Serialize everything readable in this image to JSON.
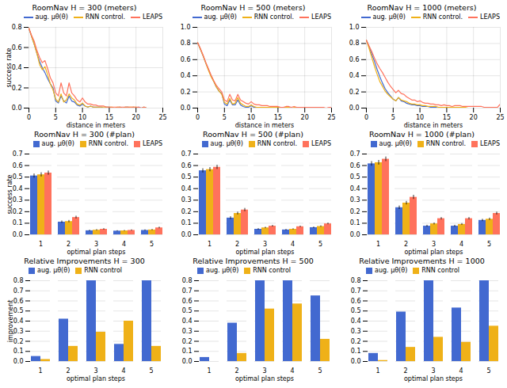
{
  "chart_data": [
    {
      "type": "line",
      "title": "RoomNav H = 300 (meters)",
      "xlabel": "distance in meters",
      "ylabel": "success rate",
      "x": [
        0,
        0.5,
        1,
        1.5,
        2,
        2.5,
        3,
        3.5,
        4,
        4.5,
        5,
        5.5,
        6,
        6.5,
        7,
        7.5,
        8,
        8.5,
        9,
        9.5,
        10,
        10.5,
        11,
        11.5,
        12,
        12.5,
        13,
        13.5,
        14,
        14.5,
        15,
        15.5,
        16,
        16.5,
        17,
        17.5,
        18,
        18.5,
        19,
        19.5,
        20,
        20.5,
        21,
        21.5,
        22,
        22.5,
        23,
        23.5,
        24,
        24.5,
        25
      ],
      "series": [
        {
          "name": "aug. μθ(θ)",
          "values": [
            0.79,
            0.71,
            0.63,
            0.54,
            0.46,
            0.4,
            0.35,
            0.29,
            0.24,
            0.2,
            0.07,
            0.05,
            0.12,
            0.07,
            0.05,
            0.12,
            0.07,
            0.06,
            0.03,
            0.02,
            0.04,
            0.02,
            0.01,
            0.02,
            0.01,
            0.01,
            0.01,
            0.01,
            0.0,
            0.01,
            0.01,
            0.0,
            0.0,
            0.0,
            0.01,
            0.0,
            0.01,
            0.01,
            0.0,
            0.01,
            0.0,
            0.01,
            0.0,
            0.01,
            0.0,
            0.0,
            0.0,
            0.0,
            0.0,
            0.0,
            0.0
          ]
        },
        {
          "name": "RNN control.",
          "values": [
            0.79,
            0.71,
            0.63,
            0.54,
            0.43,
            0.38,
            0.41,
            0.33,
            0.24,
            0.18,
            0.09,
            0.06,
            0.14,
            0.06,
            0.08,
            0.14,
            0.1,
            0.08,
            0.04,
            0.03,
            0.05,
            0.02,
            0.01,
            0.02,
            0.01,
            0.01,
            0.01,
            0.01,
            0.01,
            0.01,
            0.01,
            0.01,
            0.0,
            0.01,
            0.01,
            0.0,
            0.01,
            0.01,
            0.01,
            0.01,
            0.01,
            0.0,
            0.0,
            0.01,
            0.0,
            0.0,
            0.0,
            0.0,
            0.0,
            0.0,
            0.0
          ]
        },
        {
          "name": "LEAPS",
          "values": [
            0.79,
            0.72,
            0.66,
            0.57,
            0.5,
            0.45,
            0.47,
            0.39,
            0.3,
            0.25,
            0.15,
            0.12,
            0.25,
            0.15,
            0.12,
            0.25,
            0.15,
            0.12,
            0.08,
            0.06,
            0.1,
            0.06,
            0.04,
            0.04,
            0.03,
            0.03,
            0.02,
            0.02,
            0.02,
            0.01,
            0.01,
            0.01,
            0.01,
            0.01,
            0.01,
            0.01,
            0.01,
            0.01,
            0.01,
            0.01,
            0.01,
            0.01,
            0.0,
            0.01,
            0.0,
            0.0,
            0.0,
            0.0,
            0.0,
            0.0,
            0.0
          ]
        }
      ],
      "xlim": [
        0,
        25
      ],
      "xticks": [
        0,
        5,
        10,
        15,
        20,
        25
      ],
      "ylim": [
        0,
        0.8
      ],
      "yticks": [
        {
          "value": 0,
          "label": "0.0"
        },
        0.2,
        0.4,
        0.6,
        0.8
      ],
      "grid": true,
      "legend": "upper right"
    },
    {
      "type": "line",
      "title": "RoomNav H = 500 (meters)",
      "xlabel": "distance in meters",
      "x": [
        0,
        0.5,
        1,
        1.5,
        2,
        2.5,
        3,
        3.5,
        4,
        4.5,
        5,
        5.5,
        6,
        6.5,
        7,
        7.5,
        8,
        8.5,
        9,
        9.5,
        10,
        10.5,
        11,
        11.5,
        12,
        12.5,
        13,
        13.5,
        14,
        14.5,
        15,
        15.5,
        16,
        16.5,
        17,
        17.5,
        18,
        18.5,
        19,
        19.5,
        20,
        20.5,
        21,
        21.5,
        22,
        22.5,
        23,
        23.5,
        24,
        24.5,
        25
      ],
      "series": [
        {
          "name": "aug. μθ(θ)",
          "values": [
            0.81,
            0.73,
            0.65,
            0.56,
            0.48,
            0.4,
            0.33,
            0.26,
            0.21,
            0.18,
            0.05,
            0.03,
            0.1,
            0.04,
            0.04,
            0.1,
            0.04,
            0.02,
            0.01,
            0.01,
            0.03,
            0.01,
            0.01,
            0.01,
            0.0,
            0.01,
            0.01,
            0.0,
            0.0,
            0.01,
            0.0,
            0.0,
            0.0,
            0.0,
            0.01,
            0.0,
            0.0,
            0.0,
            0.0,
            0.0,
            0.0,
            0.0,
            0.0,
            0.0,
            0.0,
            0.0,
            0.0,
            0.0,
            0.0,
            0.0,
            0.0
          ]
        },
        {
          "name": "RNN control.",
          "values": [
            0.81,
            0.73,
            0.65,
            0.56,
            0.47,
            0.39,
            0.33,
            0.26,
            0.21,
            0.17,
            0.07,
            0.05,
            0.12,
            0.05,
            0.06,
            0.13,
            0.06,
            0.04,
            0.02,
            0.02,
            0.04,
            0.02,
            0.01,
            0.01,
            0.01,
            0.01,
            0.01,
            0.01,
            0.01,
            0.01,
            0.01,
            0.01,
            0.01,
            0.01,
            0.01,
            0.0,
            0.01,
            0.01,
            0.0,
            0.01,
            0.0,
            0.0,
            0.0,
            0.0,
            0.0,
            0.0,
            0.0,
            0.0,
            0.0,
            0.0,
            0.0
          ]
        },
        {
          "name": "LEAPS",
          "values": [
            0.81,
            0.74,
            0.66,
            0.57,
            0.49,
            0.41,
            0.34,
            0.28,
            0.24,
            0.2,
            0.1,
            0.08,
            0.17,
            0.1,
            0.09,
            0.17,
            0.1,
            0.08,
            0.06,
            0.05,
            0.08,
            0.05,
            0.04,
            0.04,
            0.03,
            0.03,
            0.03,
            0.02,
            0.02,
            0.02,
            0.02,
            0.01,
            0.01,
            0.02,
            0.02,
            0.01,
            0.02,
            0.01,
            0.01,
            0.01,
            0.01,
            0.01,
            0.01,
            0.01,
            0.01,
            0.01,
            0.01,
            0.01,
            0.0,
            0.01,
            0.01
          ]
        }
      ],
      "xlim": [
        0,
        25
      ],
      "xticks": [
        0,
        5,
        10,
        15,
        20,
        25
      ],
      "ylim": [
        0,
        1
      ],
      "yticks": [
        {
          "value": 0,
          "label": "0.0"
        },
        0.2,
        0.4,
        0.6,
        0.8,
        {
          "value": 1,
          "label": "1.0"
        }
      ],
      "grid": true,
      "legend": "upper right"
    },
    {
      "type": "line",
      "title": "RoomNav H = 1000 (meters)",
      "xlabel": "distance in meters",
      "x": [
        0,
        0.5,
        1,
        1.5,
        2,
        2.5,
        3,
        3.5,
        4,
        4.5,
        5,
        5.5,
        6,
        6.5,
        7,
        7.5,
        8,
        8.5,
        9,
        9.5,
        10,
        10.5,
        11,
        11.5,
        12,
        12.5,
        13,
        13.5,
        14,
        14.5,
        15,
        15.5,
        16,
        16.5,
        17,
        17.5,
        18,
        18.5,
        19,
        19.5,
        20,
        20.5,
        21,
        21.5,
        22,
        22.5,
        23,
        23.5,
        24,
        24.5,
        25
      ],
      "series": [
        {
          "name": "aug. μθ(θ)",
          "values": [
            0.84,
            0.76,
            0.67,
            0.58,
            0.48,
            0.39,
            0.31,
            0.24,
            0.19,
            0.15,
            0.11,
            0.09,
            0.13,
            0.09,
            0.08,
            0.06,
            0.05,
            0.04,
            0.04,
            0.03,
            0.03,
            0.02,
            0.02,
            0.02,
            0.01,
            0.01,
            0.01,
            0.0,
            0.0,
            0.01,
            0.0,
            0.0,
            0.0,
            0.0,
            0.0,
            0.0,
            0.0,
            0.0,
            0.0,
            0.0,
            0.0,
            0.0,
            0.0,
            0.0,
            0.0,
            0.0,
            0.0,
            0.0,
            0.0,
            0.0,
            0.0
          ]
        },
        {
          "name": "RNN control.",
          "values": [
            0.84,
            0.74,
            0.63,
            0.52,
            0.42,
            0.33,
            0.27,
            0.21,
            0.17,
            0.14,
            0.11,
            0.09,
            0.13,
            0.1,
            0.09,
            0.08,
            0.06,
            0.05,
            0.05,
            0.04,
            0.04,
            0.03,
            0.03,
            0.02,
            0.02,
            0.02,
            0.02,
            0.01,
            0.01,
            0.01,
            0.01,
            0.01,
            0.01,
            0.01,
            0.01,
            0.01,
            0.01,
            0.01,
            0.0,
            0.0,
            0.0,
            0.0,
            0.0,
            0.0,
            0.0,
            0.0,
            0.0,
            0.0,
            0.0,
            0.0,
            0.0
          ]
        },
        {
          "name": "LEAPS",
          "values": [
            0.84,
            0.77,
            0.7,
            0.62,
            0.55,
            0.49,
            0.44,
            0.38,
            0.32,
            0.27,
            0.23,
            0.19,
            0.22,
            0.18,
            0.17,
            0.14,
            0.12,
            0.1,
            0.1,
            0.08,
            0.09,
            0.07,
            0.06,
            0.06,
            0.05,
            0.05,
            0.04,
            0.04,
            0.03,
            0.04,
            0.03,
            0.03,
            0.02,
            0.03,
            0.03,
            0.03,
            0.02,
            0.02,
            0.02,
            0.02,
            0.02,
            0.02,
            0.02,
            0.02,
            0.01,
            0.01,
            0.01,
            0.01,
            0.01,
            0.01,
            0.05
          ]
        }
      ],
      "xlim": [
        0,
        25
      ],
      "xticks": [
        0,
        5,
        10,
        15,
        20,
        25
      ],
      "ylim": [
        0,
        1
      ],
      "yticks": [
        {
          "value": 0,
          "label": "0.0"
        },
        0.2,
        0.4,
        0.6,
        0.8,
        {
          "value": 1,
          "label": "1.0"
        }
      ],
      "grid": true,
      "legend": "upper right"
    },
    {
      "type": "bar",
      "title": "RoomNav H = 300 (#plan)",
      "xlabel": "optimal plan steps",
      "ylabel": "success rate",
      "categories": [
        1,
        2,
        3,
        4,
        5
      ],
      "series": [
        {
          "name": "aug. μθ(θ)",
          "values": [
            0.51,
            0.11,
            0.035,
            0.032,
            0.038
          ],
          "errors": [
            0.018,
            0.01,
            0.005,
            0.004,
            0.005
          ]
        },
        {
          "name": "RNN control.",
          "values": [
            0.52,
            0.115,
            0.04,
            0.034,
            0.042
          ],
          "errors": [
            0.018,
            0.01,
            0.005,
            0.004,
            0.005
          ]
        },
        {
          "name": "LEAPS",
          "values": [
            0.535,
            0.15,
            0.048,
            0.038,
            0.06
          ],
          "errors": [
            0.018,
            0.012,
            0.006,
            0.005,
            0.007
          ]
        }
      ],
      "ylim": [
        0,
        0.7
      ],
      "yticks": [
        {
          "value": 0,
          "label": "0.0"
        },
        0.1,
        0.2,
        0.3,
        0.4,
        0.5,
        0.6,
        0.7
      ],
      "grid": true,
      "legend": "upper right"
    },
    {
      "type": "bar",
      "title": "RoomNav H = 500 (#plan)",
      "xlabel": "optimal plan steps",
      "categories": [
        1,
        2,
        3,
        4,
        5
      ],
      "series": [
        {
          "name": "aug. μθ(θ)",
          "values": [
            0.555,
            0.145,
            0.048,
            0.042,
            0.062
          ],
          "errors": [
            0.018,
            0.012,
            0.006,
            0.005,
            0.006
          ]
        },
        {
          "name": "RNN control.",
          "values": [
            0.565,
            0.185,
            0.06,
            0.048,
            0.072
          ],
          "errors": [
            0.018,
            0.012,
            0.006,
            0.005,
            0.006
          ]
        },
        {
          "name": "LEAPS",
          "values": [
            0.585,
            0.215,
            0.075,
            0.07,
            0.095
          ],
          "errors": [
            0.018,
            0.014,
            0.007,
            0.006,
            0.007
          ]
        }
      ],
      "ylim": [
        0,
        0.7
      ],
      "yticks": [
        {
          "value": 0,
          "label": "0.0"
        },
        0.1,
        0.2,
        0.3,
        0.4,
        0.5,
        0.6,
        0.7
      ],
      "grid": true,
      "legend": "upper right"
    },
    {
      "type": "bar",
      "title": "RoomNav H = 1000 (#plan)",
      "xlabel": "optimal plan steps",
      "categories": [
        1,
        2,
        3,
        4,
        5
      ],
      "series": [
        {
          "name": "aug. μθ(θ)",
          "values": [
            0.615,
            0.235,
            0.075,
            0.075,
            0.125
          ],
          "errors": [
            0.02,
            0.015,
            0.008,
            0.008,
            0.01
          ]
        },
        {
          "name": "RNN control.",
          "values": [
            0.625,
            0.275,
            0.095,
            0.09,
            0.135
          ],
          "errors": [
            0.02,
            0.015,
            0.008,
            0.008,
            0.01
          ]
        },
        {
          "name": "LEAPS",
          "values": [
            0.655,
            0.325,
            0.14,
            0.14,
            0.185
          ],
          "errors": [
            0.02,
            0.018,
            0.01,
            0.01,
            0.012
          ]
        }
      ],
      "ylim": [
        0,
        0.7
      ],
      "yticks": [
        {
          "value": 0,
          "label": "0.0"
        },
        0.1,
        0.2,
        0.3,
        0.4,
        0.5,
        0.6,
        0.7
      ],
      "grid": true,
      "legend": "upper right"
    },
    {
      "type": "bar",
      "title": "Relative Improvements H = 300",
      "xlabel": "optimal plan steps",
      "ylabel": "improvement",
      "categories": [
        1,
        2,
        3,
        4,
        5
      ],
      "series": [
        {
          "name": "aug. μθ(θ)",
          "values": [
            0.05,
            0.42,
            0.8,
            0.17,
            0.8
          ]
        },
        {
          "name": "RNN control",
          "values": [
            0.02,
            0.15,
            0.29,
            0.4,
            0.15
          ]
        }
      ],
      "ylim": [
        0,
        0.8
      ],
      "yticks": [
        {
          "value": 0,
          "label": "0.0"
        },
        0.1,
        0.2,
        0.3,
        0.4,
        0.5,
        0.6,
        0.7,
        0.8
      ],
      "grid": true,
      "legend": "upper left"
    },
    {
      "type": "bar",
      "title": "Relative Improvements H = 500",
      "xlabel": "optimal plan steps",
      "categories": [
        1,
        2,
        3,
        4,
        5
      ],
      "series": [
        {
          "name": "aug. μθ(θ)",
          "values": [
            0.04,
            0.38,
            0.8,
            0.8,
            0.65
          ]
        },
        {
          "name": "RNN control",
          "values": [
            0.0,
            0.08,
            0.52,
            0.57,
            0.22
          ]
        }
      ],
      "ylim": [
        0,
        0.8
      ],
      "yticks": [
        {
          "value": 0,
          "label": "0.0"
        },
        0.1,
        0.2,
        0.3,
        0.4,
        0.5,
        0.6,
        0.7,
        0.8
      ],
      "grid": true,
      "legend": "upper left"
    },
    {
      "type": "bar",
      "title": "Relative Improvements H = 1000",
      "xlabel": "optimal plan steps",
      "categories": [
        1,
        2,
        3,
        4,
        5
      ],
      "series": [
        {
          "name": "aug. μθ(θ)",
          "values": [
            0.08,
            0.49,
            0.8,
            0.53,
            0.8
          ]
        },
        {
          "name": "RNN control",
          "values": [
            0.01,
            0.14,
            0.24,
            0.19,
            0.35
          ]
        }
      ],
      "ylim": [
        0,
        0.8
      ],
      "yticks": [
        {
          "value": 0,
          "label": "0.0"
        },
        0.1,
        0.2,
        0.3,
        0.4,
        0.5,
        0.6,
        0.7,
        0.8
      ],
      "grid": true,
      "legend": "upper left"
    }
  ]
}
